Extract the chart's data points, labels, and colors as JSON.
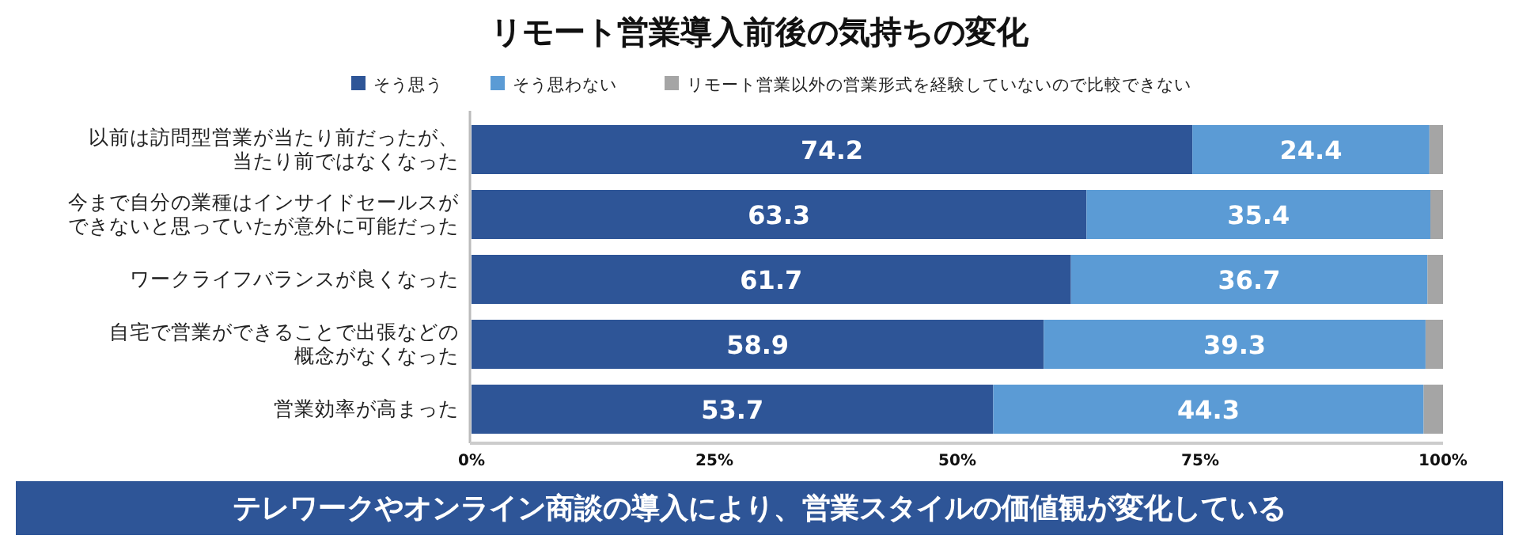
{
  "chart_data": {
    "type": "bar",
    "orientation": "horizontal",
    "stacked": true,
    "title": "リモート営業導入前後の気持ちの変化",
    "categories": [
      "以前は訪問型営業が当たり前だったが、当たり前ではなくなった",
      "今まで自分の業種はインサイドセールスができないと思っていたが意外に可能だった",
      "ワークライフバランスが良くなった",
      "自宅で営業ができることで出張などの概念がなくなった",
      "営業効率が高まった"
    ],
    "series": [
      {
        "name": "そう思う",
        "color": "#2e5597",
        "values": [
          74.2,
          63.3,
          61.7,
          58.9,
          53.7
        ],
        "value_labels": [
          "74.2",
          "63.3",
          "61.7",
          "58.9",
          "53.7"
        ]
      },
      {
        "name": "そう思わない",
        "color": "#5b9bd5",
        "values": [
          24.4,
          35.4,
          36.7,
          39.3,
          44.3
        ],
        "value_labels": [
          "24.4",
          "35.4",
          "36.7",
          "39.3",
          "44.3"
        ]
      },
      {
        "name": "リモート営業以外の営業形式を経験していないので比較できない",
        "color": "#a5a5a5",
        "values": [
          1.4,
          1.3,
          1.6,
          1.8,
          2.0
        ]
      }
    ],
    "xlim": [
      0,
      100
    ],
    "xticks": [
      {
        "value": 0,
        "label": "0%"
      },
      {
        "value": 25,
        "label": "25%"
      },
      {
        "value": 50,
        "label": "50%"
      },
      {
        "value": 75,
        "label": "75%"
      },
      {
        "value": 100,
        "label": "100%"
      }
    ],
    "legend": "top",
    "annotations": [
      "テレワークやオンライン商談の導入により、営業スタイルの価値観が変化している"
    ]
  }
}
